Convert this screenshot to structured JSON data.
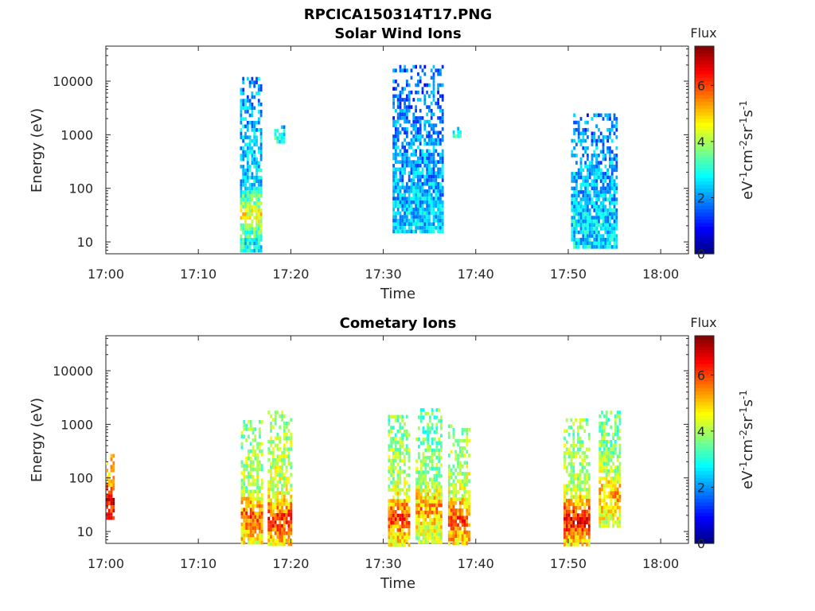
{
  "figure_title": "RPCICA150314T17.PNG",
  "chart_data": [
    {
      "type": "heatmap",
      "title": "Solar Wind Ions",
      "xlabel": "Time",
      "ylabel": "Energy (eV)",
      "x_unit": "minutes after 17:00",
      "xlim": [
        0,
        63
      ],
      "x_ticks": [
        {
          "v": 0,
          "label": "17:00"
        },
        {
          "v": 10,
          "label": "17:10"
        },
        {
          "v": 20,
          "label": "17:20"
        },
        {
          "v": 30,
          "label": "17:30"
        },
        {
          "v": 40,
          "label": "17:40"
        },
        {
          "v": 50,
          "label": "17:50"
        },
        {
          "v": 60,
          "label": "18:00"
        }
      ],
      "y_scale": "log",
      "ylim": [
        6,
        45000
      ],
      "y_ticks": [
        {
          "v": 10,
          "label": "10"
        },
        {
          "v": 100,
          "label": "100"
        },
        {
          "v": 1000,
          "label": "1000"
        },
        {
          "v": 10000,
          "label": "10000"
        }
      ],
      "colorbar": {
        "label": "Flux",
        "unit": "eV-1cm-2sr-1s-1",
        "range": [
          0,
          7.4
        ],
        "ticks": [
          0,
          2,
          4,
          6
        ],
        "colormap": "jet"
      },
      "clusters": [
        {
          "t0": 14.5,
          "t1": 16.8,
          "e0": 7,
          "e1": 12000,
          "level": 2.8,
          "peak_e": 35,
          "peak_level": 4.8
        },
        {
          "t0": 18.2,
          "t1": 19.2,
          "e0": 700,
          "e1": 1500,
          "level": 3.3
        },
        {
          "t0": 31.0,
          "t1": 36.5,
          "e0": 15,
          "e1": 20000,
          "level": 2.4
        },
        {
          "t0": 37.5,
          "t1": 38.3,
          "e0": 900,
          "e1": 1400,
          "level": 3.4
        },
        {
          "t0": 50.3,
          "t1": 55.2,
          "e0": 8,
          "e1": 2500,
          "level": 2.6
        }
      ]
    },
    {
      "type": "heatmap",
      "title": "Cometary Ions",
      "xlabel": "Time",
      "ylabel": "Energy (eV)",
      "x_unit": "minutes after 17:00",
      "xlim": [
        0,
        63
      ],
      "x_ticks": [
        {
          "v": 0,
          "label": "17:00"
        },
        {
          "v": 10,
          "label": "17:10"
        },
        {
          "v": 20,
          "label": "17:20"
        },
        {
          "v": 30,
          "label": "17:30"
        },
        {
          "v": 40,
          "label": "17:40"
        },
        {
          "v": 50,
          "label": "17:50"
        },
        {
          "v": 60,
          "label": "18:00"
        }
      ],
      "y_scale": "log",
      "ylim": [
        6,
        45000
      ],
      "y_ticks": [
        {
          "v": 10,
          "label": "10"
        },
        {
          "v": 100,
          "label": "100"
        },
        {
          "v": 1000,
          "label": "1000"
        },
        {
          "v": 10000,
          "label": "10000"
        }
      ],
      "colorbar": {
        "label": "Flux",
        "unit": "eV-1cm-2sr-1s-1",
        "range": [
          0,
          7.4
        ],
        "ticks": [
          0,
          2,
          4,
          6
        ],
        "colormap": "jet"
      },
      "clusters": [
        {
          "t0": 0.0,
          "t1": 0.9,
          "e0": 18,
          "e1": 280,
          "level": 5.5,
          "peak_e": 40,
          "peak_level": 6.8
        },
        {
          "t0": 14.6,
          "t1": 16.8,
          "e0": 6,
          "e1": 1200,
          "level": 4.5,
          "peak_e": 20,
          "peak_level": 6.0
        },
        {
          "t0": 17.5,
          "t1": 20.0,
          "e0": 6,
          "e1": 1800,
          "level": 4.6,
          "peak_e": 18,
          "peak_level": 6.4
        },
        {
          "t0": 30.5,
          "t1": 32.8,
          "e0": 6,
          "e1": 1500,
          "level": 4.5,
          "peak_e": 20,
          "peak_level": 6.2
        },
        {
          "t0": 33.5,
          "t1": 36.3,
          "e0": 6,
          "e1": 2000,
          "level": 4.2,
          "peak_e": 30,
          "peak_level": 5.6
        },
        {
          "t0": 37.0,
          "t1": 39.2,
          "e0": 6,
          "e1": 1000,
          "level": 4.6,
          "peak_e": 18,
          "peak_level": 6.2
        },
        {
          "t0": 49.5,
          "t1": 52.3,
          "e0": 6,
          "e1": 1300,
          "level": 4.5,
          "peak_e": 18,
          "peak_level": 6.8
        },
        {
          "t0": 53.3,
          "t1": 55.5,
          "e0": 12,
          "e1": 1800,
          "level": 4.3,
          "peak_e": 50,
          "peak_level": 5.5
        }
      ]
    }
  ]
}
